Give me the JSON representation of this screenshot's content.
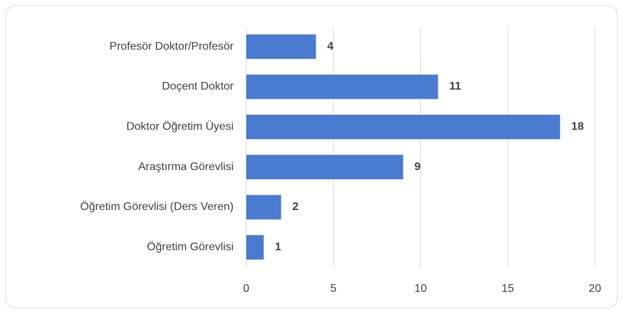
{
  "chart_data": {
    "type": "bar",
    "orientation": "horizontal",
    "categories": [
      "Profesör Doktor/Profesör",
      "Doçent Doktor",
      "Doktor Öğretim Üyesi",
      "Araştırma Görevlisi",
      "Öğretim Görevlisi (Ders Veren)",
      "Öğretim Görevlisi"
    ],
    "values": [
      4,
      11,
      18,
      9,
      2,
      1
    ],
    "color": "#4a7bd0",
    "xlim": [
      0,
      20
    ],
    "xticks": [
      0,
      5,
      10,
      15,
      20
    ],
    "grid": true
  }
}
